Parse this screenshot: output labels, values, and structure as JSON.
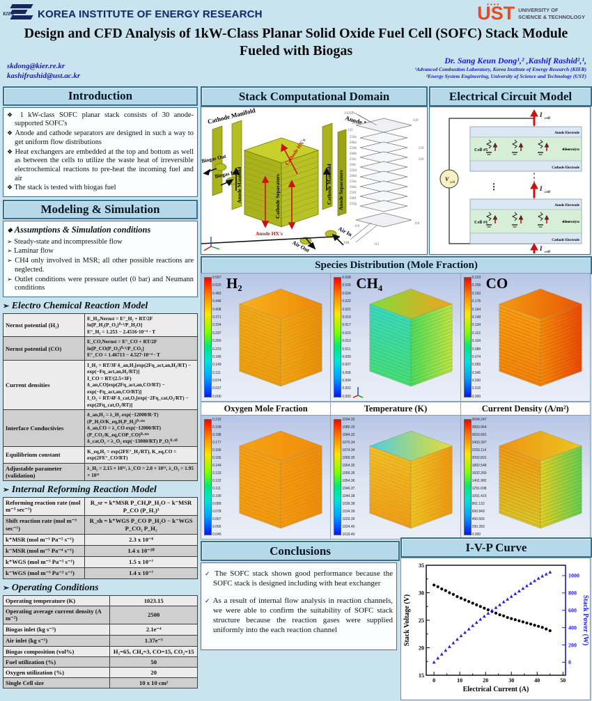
{
  "icons": {
    "diamond": "❖",
    "arrow": "➢",
    "check": "✓"
  },
  "header": {
    "kier_small": "KIER",
    "kier_text": "KOREA INSTITUTE OF ENERGY RESEARCH",
    "ust_dots": "••••",
    "ust_word": "UST",
    "ust_sub1": "UNIVERSITY OF",
    "ust_sub2": "SCIENCE & TECHNOLOGY",
    "title_line1": "Design and CFD Analysis of 1kW-Class Planar Solid Oxide Fuel Cell (SOFC) Stack Module",
    "title_line2": "Fueled with Biogas",
    "email1": "skdong@kier.re.kr",
    "email2": "kashifrashid@ust.ac.kr",
    "authors": "Dr. Sang Keun Dong¹,² ,Kashif Rashid²,¹,",
    "affil1": "¹Advanced Combustion Laboratory, Korea Institute of Energy Research (KIER)",
    "affil2": "²Energy System Engineering, University of Science and Technology (UST)"
  },
  "intro": {
    "title": "Introduction",
    "bullets": [
      "1 kW-class SOFC planar stack consists of 30 anode-supported SOFC's",
      "Anode and cathode separators are designed in such a way to get uniform flow distributions",
      "Heat exchangers are embedded at the top and bottom as well as between the cells to utilize the waste heat of irreversible electrochemical reactions to pre-heat the incoming fuel and air",
      "The stack is tested with biogas fuel"
    ]
  },
  "modeling": {
    "title": "Modeling & Simulation",
    "subtitle": "Assumptions & Simulation conditions",
    "bullets": [
      "Steady-state and incompressible flow",
      "Laminar flow",
      "CH4 only involved in MSR; all other possible reactions are neglected.",
      "Outlet conditions were pressure outlet (0 bar) and Neumann conditions"
    ]
  },
  "echem": {
    "title": "Electro Chemical Reaction Model",
    "rows": [
      {
        "label": "Nernst potential (H₂)",
        "lines": [
          "E_H₂,Nernst = E°_H₂ + RT/2F ln[P_H₂(P_O₂)⁰·⁵/P_H₂O]",
          "E°_H₂ = 1.253 − 2.4516·10⁻⁴ · T"
        ]
      },
      {
        "label": "Nernst potential (CO)",
        "lines": [
          "E_CO,Nernst = E°_CO + RT/2F ln[P_CO(P_O₂)⁰·⁵/P_CO₂]",
          "E°_CO = 1.46713 − 4.527·10⁻⁴ · T"
        ]
      },
      {
        "label": "Current densities",
        "lines": [
          "I_H₂ = RT/3F δ_an,H₂[exp(2Fη_act,an,H₂/RT) − exp(−Fη_act,an,H₂/RT)]",
          "I_CO = RT/(2.5×3F) δ_an,CO[exp(2Fη_act,an,CO/RT) − exp(−Fη_act,an,CO/RT)]",
          "I_O₂ = RT/4F δ_cat,O₂[exp(−2Fη_cat,O₂/RT) − exp(2Fη_cat,O₂/RT)]"
        ]
      },
      {
        "label": "Interface Conductivies",
        "lines": [
          "δ_an,H₂ = λ_H₂ exp(−12000/R·T)(P_H₂O/K_eq,H₂P_H₂)⁰·²⁶⁶",
          "δ_an,CO = λ_CO exp(−12000/RT)(P_CO₂/K_eq,COP_CO)⁰·²⁶⁶",
          "δ_cat,O₂ = λ_O₂ exp(−13000/RT) P_O₂⁰·⁵⁰"
        ]
      },
      {
        "label": "Equilibrium constant",
        "lines": [
          "K_eq,H₂ = exp(2FE°_H₂/RT), K_eq,CO = exp(2FE°_CO/RT)"
        ]
      },
      {
        "label": "Adjustable parameter (validation)",
        "lines": [
          "λ_H₂ = 2.15 × 10¹², λ_CO = 2.0 × 10¹², λ_O₂ = 1.95 × 10¹¹"
        ]
      }
    ]
  },
  "reforming": {
    "title": "Internal Reforming Reaction Model",
    "rows": [
      {
        "label": "Reforming reaction rate (mol m⁻³ sec⁻¹)",
        "value": "R_sr = k⁺MSR P_CH₄P_H₂O − k⁻MSR P_CO (P_H₂)³"
      },
      {
        "label": "Shift reaction rate (mol m⁻³ sec⁻¹)",
        "value": "R_sh = k⁺WGS P_CO P_H₂O − k⁻WGS P_CO₂ P_H₂"
      },
      {
        "label": "k⁺MSR (mol m⁻³ Pa⁻² s⁻¹)",
        "value": "2.3 x 10⁻⁸"
      },
      {
        "label": "k⁻MSR (mol m⁻⁵ Pa⁻⁴ s⁻¹)",
        "value": "1.4 x 10⁻²⁰"
      },
      {
        "label": "k⁺WGS (mol m⁻³ Pa⁻² s⁻¹)",
        "value": "1.5 x 10⁻⁷"
      },
      {
        "label": "k⁻WGS (mol m⁻³ Pa⁻² s⁻¹)",
        "value": "1.4 x 10⁻⁷"
      }
    ]
  },
  "operating": {
    "title": "Operating Conditions",
    "rows": [
      {
        "label": "Operating temperature (K)",
        "value": "1023.15"
      },
      {
        "label": "Operating average current density (A m⁻²)",
        "value": "2500"
      },
      {
        "label": "Biogas inlet (kg s⁻¹)",
        "value": "2.1e⁻⁴"
      },
      {
        "label": "Air inlet (kg s⁻¹)",
        "value": "1.37e⁻³"
      },
      {
        "label": "Biogas composition (vol%)",
        "value": "H₂=65, CH₄=3, CO=15, CO₂=15"
      },
      {
        "label": "Fuel utilization (%)",
        "value": "50"
      },
      {
        "label": "Oxygen utilization (%)",
        "value": "20"
      },
      {
        "label": "Single Cell size",
        "value": "10 x 10 cm²"
      }
    ]
  },
  "stack_domain": {
    "title": "Stack Computational Domain",
    "labels": {
      "cathode_manifold_top": "Cathode Manifold",
      "anode_manifold_top": "Anode Manifold",
      "biogas_out": "Biogas Out",
      "biogas_in": "Biogas In",
      "anode_manifold_side": "Anode Manifold",
      "cathode_separators": "Cathode Separators",
      "cathode_hx": "Cathode HX's",
      "anode_separators": "Anode Separators",
      "cathode_manifold_side": "Cathode Manifold",
      "anode_hx": "Anode HX's",
      "air_out": "Air Out",
      "air_in": "Air In"
    },
    "part_labels": [
      "120",
      "124",
      "122",
      "250a",
      "268a",
      "250b",
      "268b",
      "250c",
      "268c",
      "250d",
      "268d",
      "250e",
      "268e",
      "250f",
      "268f",
      "250g",
      "230",
      "220",
      "110",
      "116",
      "112",
      "AIR",
      "FUEL"
    ]
  },
  "circuit": {
    "title": "Electrical Circuit Model",
    "vcell_main": "V",
    "vcell_sub": "cell",
    "icell_main": "I",
    "icell_sub": "cell",
    "cell_top": "Cell #5",
    "cell_bottom": "Cell #1",
    "anode_electrode": "Anode Electrode",
    "electrolyte": "Electrolyte",
    "cathode_electrode": "Cathode Electrode",
    "dots": "• • •"
  },
  "species": {
    "banner": "Species Distribution (Mole Fraction)",
    "row1": [
      {
        "label": "H₂",
        "ticks": [
          "0.557",
          "0.520",
          "0.483",
          "0.446",
          "0.408",
          "0.371",
          "0.334",
          "0.297",
          "0.260",
          "0.223",
          "0.186",
          "0.149",
          "0.111",
          "0.074",
          "0.037",
          "0.000"
        ],
        "cube": {
          "t": [
            "#f7b21e",
            "#ef8806"
          ],
          "l": [
            "#f5a715",
            "#f19a0e"
          ],
          "r": [
            "#f6a312",
            "#ee8d07"
          ],
          "stripe": "#7a9c2a"
        }
      },
      {
        "label": "CH₄",
        "ticks": [
          "0.028",
          "0.026",
          "0.024",
          "0.022",
          "0.021",
          "0.019",
          "0.017",
          "0.015",
          "0.013",
          "0.011",
          "0.009",
          "0.007",
          "0.006",
          "0.004",
          "0.002",
          "0.000"
        ],
        "cube": {
          "t": [
            "#7ede3c",
            "#f0a21e"
          ],
          "l": [
            "#38d8c0",
            "#4ade6e"
          ],
          "r": [
            "#4fdb55",
            "#c6e23c"
          ],
          "stripe": "#1e9c8a"
        }
      },
      {
        "label": "CO",
        "ticks": [
          "0.223",
          "0.208",
          "0.193",
          "0.178",
          "0.164",
          "0.149",
          "0.134",
          "0.119",
          "0.104",
          "0.089",
          "0.074",
          "0.059",
          "0.045",
          "0.030",
          "0.015",
          "0.000"
        ],
        "cube": {
          "t": [
            "#f39b10",
            "#e85504"
          ],
          "l": [
            "#f5a013",
            "#f08409"
          ],
          "r": [
            "#f28b08",
            "#e84a06"
          ],
          "stripe": "#c03a06"
        }
      }
    ],
    "row2": [
      {
        "title": "Oxygen Mole Fraction",
        "ticks": [
          "0.210",
          "0.199",
          "0.188",
          "0.177",
          "0.166",
          "0.155",
          "0.144",
          "0.133",
          "0.122",
          "0.111",
          "0.100",
          "0.089",
          "0.078",
          "0.067",
          "0.056",
          "0.045"
        ],
        "cube": {
          "t": [
            "#f6a315",
            "#f08c09"
          ],
          "l": [
            "#f5a013",
            "#f29a10"
          ],
          "r": [
            "#f49a10",
            "#ef8d08"
          ],
          "stripe": "#b97a1a"
        }
      },
      {
        "title": "Temperature (K)",
        "ticks": [
          "1094.32",
          "1089.33",
          "1084.33",
          "1079.34",
          "1074.34",
          "1069.35",
          "1064.35",
          "1059.36",
          "1054.36",
          "1049.37",
          "1044.38",
          "1039.38",
          "1034.39",
          "1029.39",
          "1024.40",
          "1019.40"
        ],
        "cube": {
          "t": [
            "#4ecde2",
            "#e8dd2e"
          ],
          "l": [
            "#f0bf26",
            "#ee9d14"
          ],
          "r": [
            "#eec322",
            "#ec9812"
          ],
          "stripe": "#c08a20"
        }
      },
      {
        "title": "Current Density (A/m²)",
        "ticks": [
          "3094.247",
          "2893.964",
          "2693.681",
          "2493.397",
          "2293.114",
          "2092.831",
          "1892.548",
          "1692.265",
          "1491.982",
          "1291.698",
          "1091.415",
          "891.132",
          "690.849",
          "490.566",
          "290.283",
          "0.000"
        ],
        "cube": {
          "t": [
            "#f09314",
            "#e9c51e"
          ],
          "l": [
            "#f09a12",
            "#d8c829"
          ],
          "r": [
            "#ddd224",
            "#5ecf55"
          ],
          "stripe": "#b06014"
        }
      }
    ]
  },
  "conclusions": {
    "title": "Conclusions",
    "items": [
      "The SOFC stack shown good performance because the SOFC stack is designed including with heat exchanger",
      "As a result of internal flow analysis in reaction channels, we were able to confirm the suitability of SOFC stack structure because the reaction gases were supplied uniformly into the each reaction channel"
    ]
  },
  "ivp": {
    "title": "I-V-P Curve"
  },
  "chart_data": {
    "type": "line",
    "title": "I-V-P Curve",
    "xlabel": "Electrical Current (A)",
    "ylabel_left": "Stack Voltage (V)",
    "ylabel_right": "Stack Power (W)",
    "xlim": [
      -3,
      51
    ],
    "x_ticks": [
      0,
      10,
      20,
      30,
      40,
      50
    ],
    "x_minor_step": 5,
    "ylim_left": [
      15,
      35
    ],
    "y_ticks_left": [
      15,
      20,
      25,
      30,
      35
    ],
    "ylim_right": [
      -150,
      1120
    ],
    "y_ticks_right": [
      0,
      200,
      400,
      600,
      800,
      1000
    ],
    "grid": false,
    "legend": "none",
    "series": [
      {
        "name": "Stack Voltage",
        "axis": "left",
        "marker": "circle",
        "color": "#000000",
        "x": [
          0,
          1.5,
          3,
          4.5,
          6,
          7.5,
          9,
          10.5,
          12,
          13.5,
          15,
          16.5,
          18,
          19.5,
          21,
          22.5,
          24,
          25.5,
          27,
          28.5,
          30,
          31.5,
          33,
          34.5,
          36,
          37.5,
          39,
          40.5,
          42,
          43.5,
          45
        ],
        "y": [
          31.4,
          31.1,
          30.7,
          30.4,
          30.0,
          29.7,
          29.3,
          29.0,
          28.7,
          28.4,
          28.1,
          27.8,
          27.5,
          27.2,
          26.9,
          26.6,
          26.3,
          26.0,
          25.8,
          25.5,
          25.3,
          25.1,
          24.9,
          24.7,
          24.5,
          24.3,
          24.1,
          23.9,
          23.7,
          23.4,
          23.1
        ]
      },
      {
        "name": "Stack Power",
        "axis": "right",
        "marker": "triangle",
        "color": "#2222dd",
        "x": [
          0,
          1.5,
          3,
          4.5,
          6,
          7.5,
          9,
          10.5,
          12,
          13.5,
          15,
          16.5,
          18,
          19.5,
          21,
          22.5,
          24,
          25.5,
          27,
          28.5,
          30,
          31.5,
          33,
          34.5,
          36,
          37.5,
          39,
          40.5,
          42,
          43.5,
          45
        ],
        "y": [
          0,
          47,
          92,
          137,
          180,
          223,
          264,
          305,
          344,
          383,
          422,
          459,
          495,
          530,
          565,
          599,
          631,
          663,
          697,
          727,
          759,
          791,
          822,
          852,
          882,
          911,
          940,
          968,
          995,
          1018,
          1040
        ]
      }
    ]
  }
}
